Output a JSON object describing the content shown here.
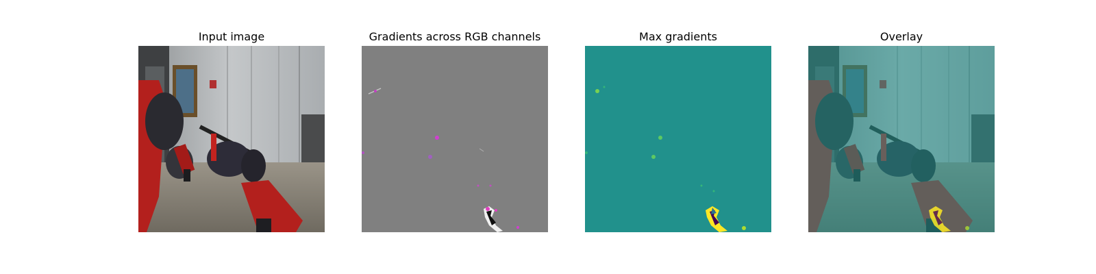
{
  "figure": {
    "panels": [
      {
        "title": "Input image",
        "image": "robot-arm-camera-view"
      },
      {
        "title": "Gradients across RGB channels",
        "image": "rgb-gradient-map"
      },
      {
        "title": "Max gradients",
        "image": "max-gradient-heatmap"
      },
      {
        "title": "Overlay",
        "image": "heatmap-overlay-on-input"
      }
    ],
    "colors": {
      "gradient_background": "#808080",
      "heatmap_background": "#21918c",
      "heatmap_high": "#fde725",
      "robot_red": "#b3201d"
    }
  }
}
